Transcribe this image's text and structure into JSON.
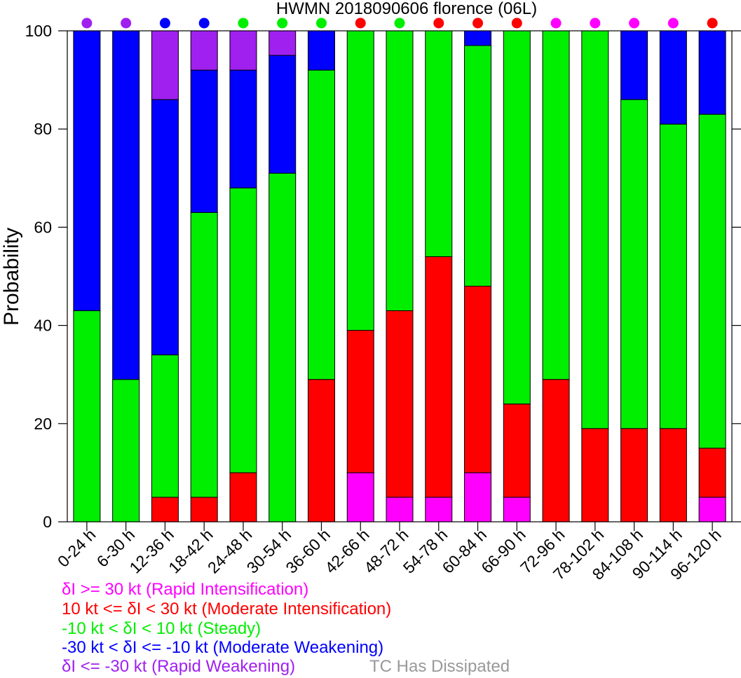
{
  "chart_data": {
    "type": "bar",
    "stacked": true,
    "title": "HWMN 2018090606 florence (06L)",
    "xlabel": "",
    "ylabel": "Probability",
    "ylim": [
      0,
      100
    ],
    "yticks": [
      0,
      20,
      40,
      60,
      80,
      100
    ],
    "grid": false,
    "categories": [
      "0-24 h",
      "6-30 h",
      "12-36 h",
      "18-42 h",
      "24-48 h",
      "30-54 h",
      "36-60 h",
      "42-66 h",
      "48-72 h",
      "54-78 h",
      "60-84 h",
      "66-90 h",
      "72-96 h",
      "78-102 h",
      "84-108 h",
      "90-114 h",
      "96-120 h"
    ],
    "series": [
      {
        "name": "δI >= 30 kt (Rapid Intensification)",
        "color": "#ff00ff",
        "values": [
          0,
          0,
          0,
          0,
          0,
          0,
          0,
          10,
          5,
          5,
          10,
          5,
          0,
          0,
          0,
          0,
          5
        ]
      },
      {
        "name": "10 kt <= δI < 30 kt (Moderate Intensification)",
        "color": "#ff0000",
        "values": [
          0,
          0,
          5,
          5,
          10,
          0,
          29,
          29,
          38,
          49,
          38,
          19,
          29,
          19,
          19,
          19,
          10
        ]
      },
      {
        "name": "-10 kt < δI < 10 kt (Steady)",
        "color": "#00ee00",
        "values": [
          43,
          29,
          29,
          58,
          58,
          71,
          63,
          61,
          57,
          46,
          49,
          76,
          71,
          81,
          67,
          62,
          68
        ]
      },
      {
        "name": "-30 kt < δI <= -10 kt (Moderate Weakening)",
        "color": "#0000ff",
        "values": [
          57,
          71,
          52,
          29,
          24,
          24,
          8,
          0,
          0,
          0,
          3,
          0,
          0,
          0,
          14,
          19,
          17
        ]
      },
      {
        "name": "δI <= -30 kt (Rapid Weakening)",
        "color": "#a020f0",
        "values": [
          0,
          0,
          14,
          8,
          8,
          5,
          0,
          0,
          0,
          0,
          0,
          0,
          0,
          0,
          0,
          0,
          0
        ]
      }
    ],
    "top_markers": [
      "#a020f0",
      "#a020f0",
      "#0000ff",
      "#0000ff",
      "#00ee00",
      "#00ee00",
      "#00ee00",
      "#ff0000",
      "#00ee00",
      "#ff0000",
      "#ff0000",
      "#ff0000",
      "#ff00ff",
      "#ff00ff",
      "#ff00ff",
      "#ff00ff",
      "#ff0000"
    ],
    "legend": [
      {
        "label": "δI >= 30 kt (Rapid Intensification)",
        "color": "#ff00ff"
      },
      {
        "label": "10 kt <= δI < 30 kt (Moderate Intensification)",
        "color": "#ff0000"
      },
      {
        "label": "-10 kt < δI < 10 kt (Steady)",
        "color": "#00ee00"
      },
      {
        "label": "-30 kt < δI <= -10 kt (Moderate Weakening)",
        "color": "#0000ff"
      },
      {
        "label": "δI <= -30 kt (Rapid Weakening)",
        "color": "#a020f0"
      }
    ],
    "dissipated_label": {
      "label": "TC Has Dissipated",
      "color": "#999999"
    },
    "legend_position": "bottom-left"
  }
}
